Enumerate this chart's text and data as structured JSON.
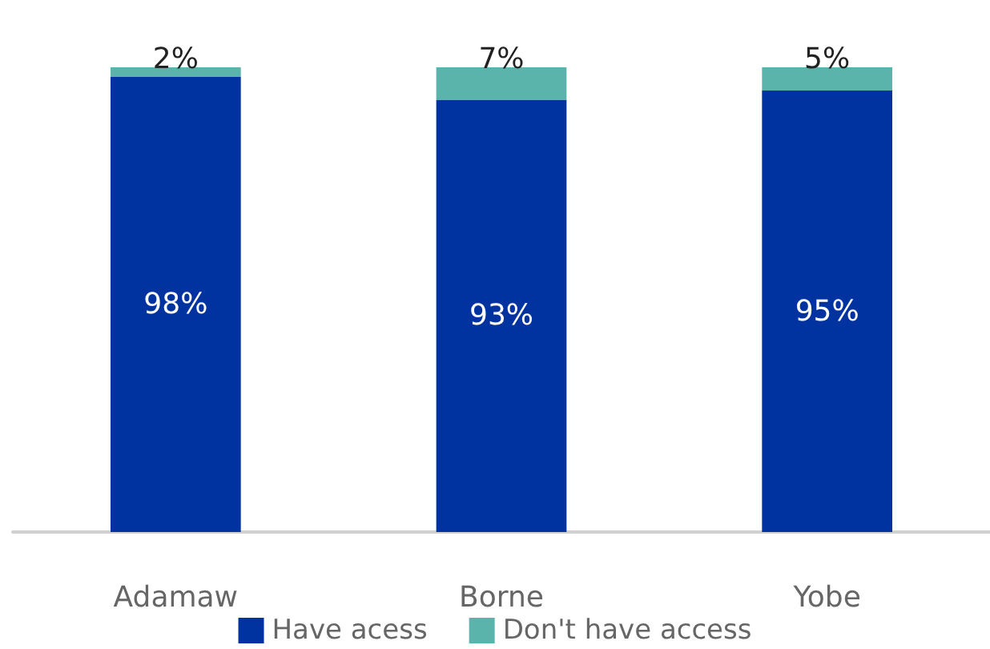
{
  "chart_data": {
    "type": "bar",
    "stacked": true,
    "legend": "bottom",
    "categories": [
      "Adamaw",
      "Borne",
      "Yobe"
    ],
    "series": [
      {
        "name": "Have acess",
        "color": "#0033a0",
        "values": [
          98,
          93,
          95
        ],
        "value_labels": [
          "98%",
          "93%",
          "95%"
        ]
      },
      {
        "name": "Don't have access",
        "color": "#5ab4ac",
        "values": [
          2,
          7,
          5
        ],
        "value_labels": [
          "2%",
          "7%",
          "5%"
        ]
      }
    ]
  }
}
